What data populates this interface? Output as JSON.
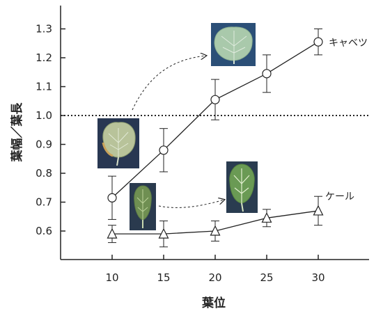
{
  "chart_data": {
    "type": "line",
    "xlabel": "葉位",
    "ylabel": "葉幅／葉長",
    "x": [
      10,
      15,
      20,
      25,
      30
    ],
    "xlim": [
      5,
      35
    ],
    "ylim": [
      0.5,
      1.4
    ],
    "xticks": [
      10,
      15,
      20,
      25,
      30
    ],
    "yticks": [
      0.6,
      0.7,
      0.8,
      0.9,
      1.0,
      1.1,
      1.2,
      1.3
    ],
    "ytick_labels": [
      "0.6",
      "0.7",
      "0.8",
      "0.9",
      "1.0",
      "1.1",
      "1.2",
      "1.3"
    ],
    "reference_line": 1.0,
    "series": [
      {
        "name": "キャベツ",
        "marker": "circle",
        "values": [
          0.715,
          0.88,
          1.055,
          1.145,
          1.255
        ],
        "errors": [
          0.075,
          0.075,
          0.07,
          0.065,
          0.045
        ]
      },
      {
        "name": "ケール",
        "marker": "triangle",
        "values": [
          0.59,
          0.59,
          0.6,
          0.645,
          0.67
        ],
        "errors": [
          0.03,
          0.045,
          0.035,
          0.03,
          0.05
        ]
      }
    ],
    "grid": false,
    "legend": "inline labels at line ends",
    "inset_images": [
      {
        "name": "cabbage-lower-leaf",
        "color": "#7d9a5c"
      },
      {
        "name": "cabbage-upper-leaf",
        "color": "#a7c6a8"
      },
      {
        "name": "kale-lower-leaf",
        "color": "#6f8f52"
      },
      {
        "name": "kale-upper-leaf",
        "color": "#6a9a54"
      }
    ]
  }
}
